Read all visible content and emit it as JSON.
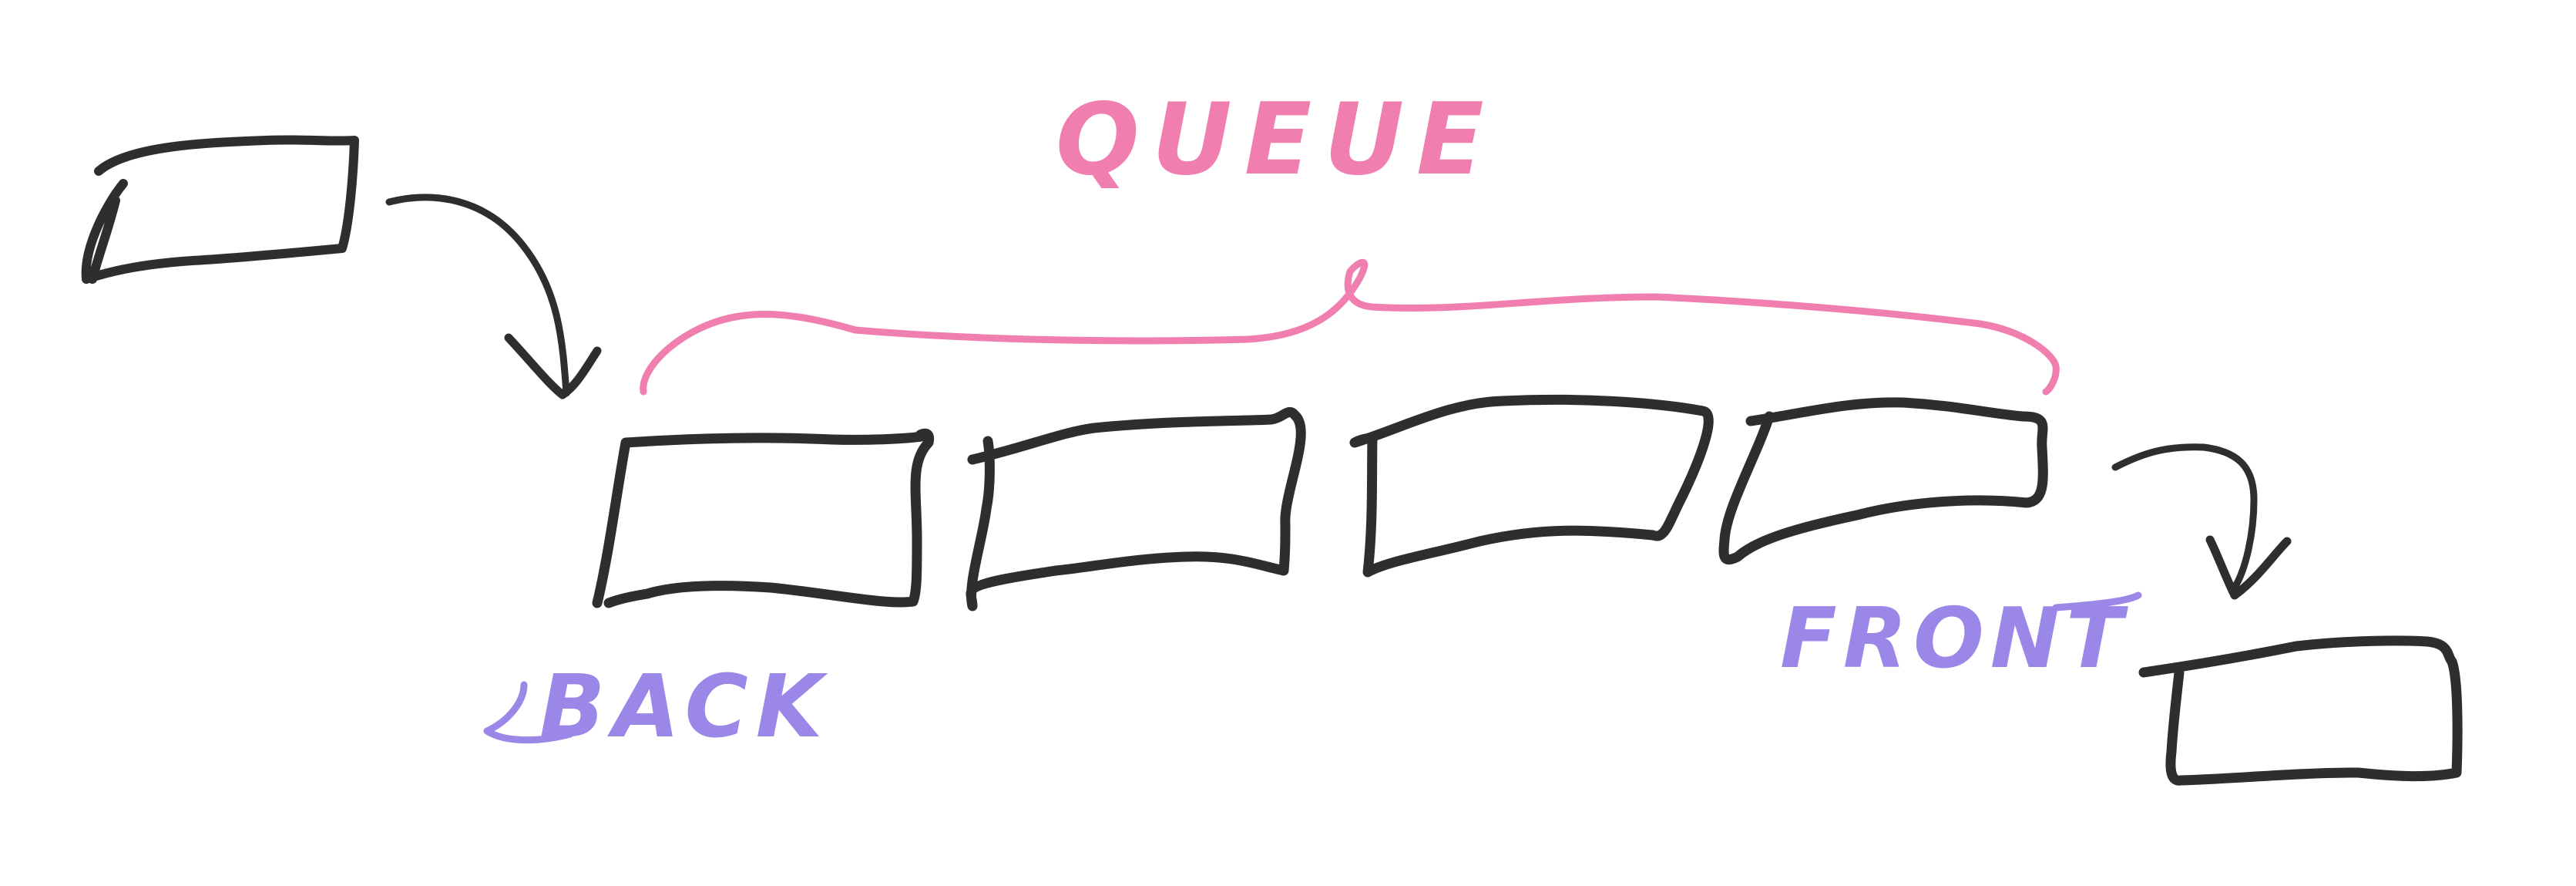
{
  "colors": {
    "background": "#ffffff",
    "ink": "#2e2e2e",
    "queue_accent": "#f07fb0",
    "pointer_accent": "#9b87e8"
  },
  "labels": {
    "queue": "QUEUE",
    "back": "BACK",
    "front": "FRONT"
  },
  "diagram": {
    "structure": "queue",
    "queue_slots": 4,
    "incoming_element": "enqueue arrow into back slot",
    "outgoing_element": "dequeue arrow out of front slot"
  }
}
